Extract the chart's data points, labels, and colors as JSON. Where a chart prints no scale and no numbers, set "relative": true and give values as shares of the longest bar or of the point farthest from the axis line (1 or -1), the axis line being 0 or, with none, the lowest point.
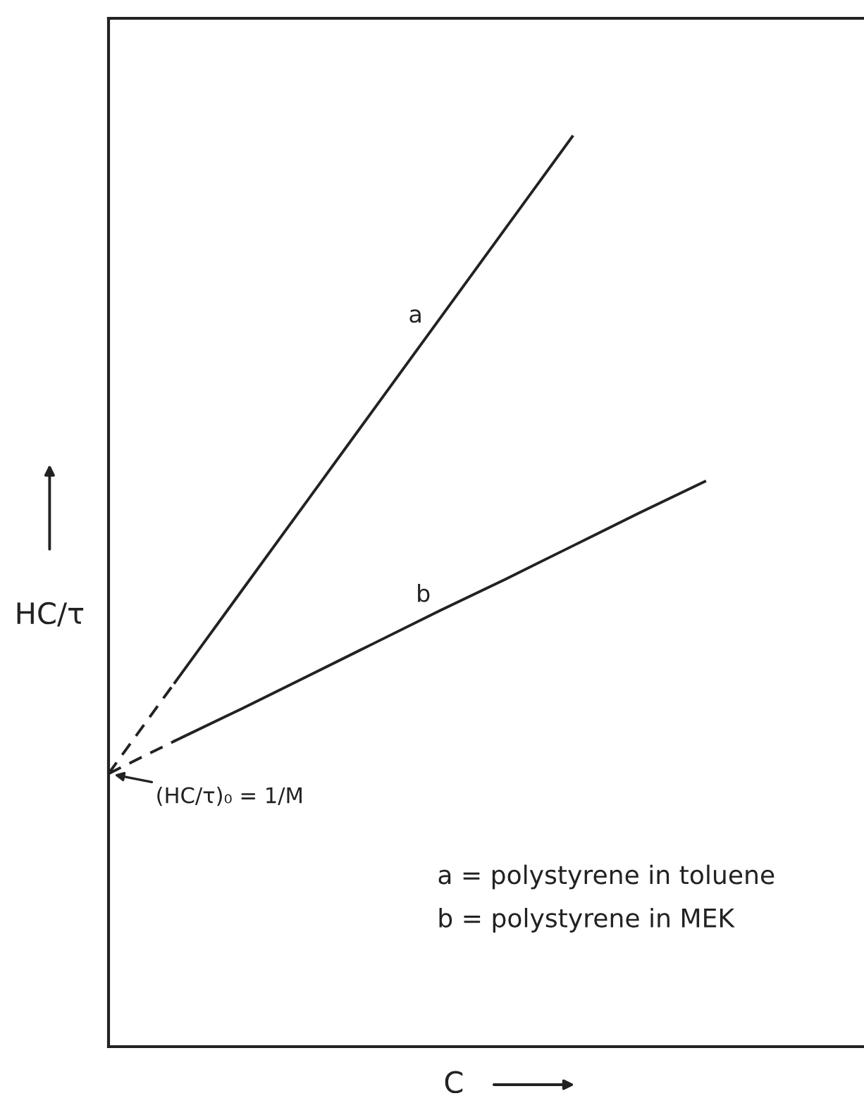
{
  "chart_data": {
    "type": "line",
    "relative": true,
    "xlabel": "C",
    "ylabel": "HC/τ",
    "categories": [
      null,
      null,
      null,
      null,
      null,
      null,
      null,
      null,
      null,
      null
    ],
    "series": [
      {
        "name": "a",
        "color": "#222222",
        "line_style": "solid",
        "values": [
          null,
          0.4,
          0.5,
          0.6,
          0.7,
          0.8,
          0.9,
          1.0,
          null,
          null
        ]
      },
      {
        "color": "#222222",
        "line_style": "dashed",
        "values": [
          0.3,
          0.4,
          null,
          null,
          null,
          null,
          null,
          null,
          null,
          null
        ]
      },
      {
        "name": "b",
        "color": "#222222",
        "line_style": "solid",
        "values": [
          null,
          0.336,
          0.371,
          0.407,
          0.443,
          0.479,
          0.514,
          0.55,
          0.586,
          0.621
        ]
      },
      {
        "color": "#222222",
        "line_style": "dashed",
        "values": [
          0.3,
          0.336,
          null,
          null,
          null,
          null,
          null,
          null,
          null,
          null
        ]
      }
    ],
    "annotations": [
      "(HC/τ)₀ = 1/M",
      "a = polystyrene in toluene",
      "b = polystyrene in MEK"
    ]
  }
}
